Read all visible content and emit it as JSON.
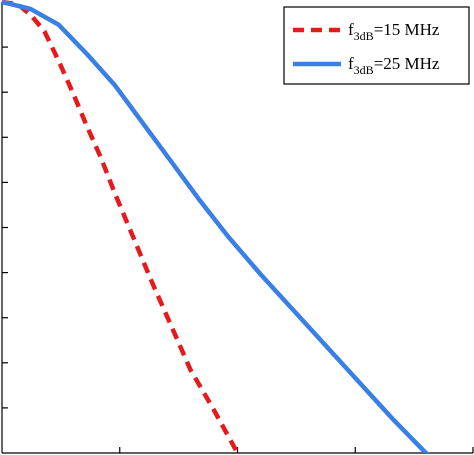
{
  "chart_data": {
    "type": "line",
    "title": "",
    "xlabel": "",
    "ylabel": "",
    "xlim": [
      0,
      1
    ],
    "ylim": [
      0,
      1
    ],
    "x_ticks": [
      0.25,
      0.5,
      0.75,
      1.0
    ],
    "y_ticks": [
      0.1,
      0.2,
      0.3,
      0.4,
      0.5,
      0.6,
      0.7,
      0.8,
      0.9
    ],
    "grid": false,
    "legend_position": "top-right",
    "series": [
      {
        "name": "f3dB=15 MHz",
        "label_main": "f",
        "label_sub": "3dB",
        "label_rest": "=15 MHz",
        "color": "#e41a1c",
        "style": "dashed",
        "x": [
          0.0,
          0.034,
          0.062,
          0.09,
          0.12,
          0.15,
          0.18,
          0.21,
          0.24,
          0.28,
          0.32,
          0.36,
          0.4,
          0.45,
          0.5,
          0.55
        ],
        "y": [
          1.0,
          0.995,
          0.97,
          0.935,
          0.87,
          0.8,
          0.725,
          0.655,
          0.575,
          0.475,
          0.375,
          0.28,
          0.185,
          0.095,
          0.0,
          -0.04
        ]
      },
      {
        "name": "f3dB=25 MHz",
        "label_main": "f",
        "label_sub": "3dB",
        "label_rest": "=25 MHz",
        "color": "#3a7fe6",
        "style": "solid",
        "x": [
          0.0,
          0.06,
          0.12,
          0.18,
          0.24,
          0.3,
          0.36,
          0.42,
          0.48,
          0.55,
          0.62,
          0.69,
          0.76,
          0.83,
          0.9,
          0.93
        ],
        "y": [
          1.0,
          0.985,
          0.95,
          0.885,
          0.815,
          0.73,
          0.645,
          0.56,
          0.48,
          0.395,
          0.315,
          0.235,
          0.155,
          0.075,
          0.0,
          -0.02
        ]
      }
    ]
  }
}
